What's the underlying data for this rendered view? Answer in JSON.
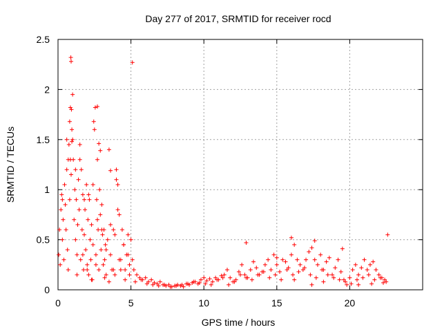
{
  "chart_data": {
    "type": "scatter",
    "title": "Day 277 of 2017, SRMTID for receiver rocd",
    "xlabel": "GPS time / hours",
    "ylabel": "SRMTID / TECUs",
    "xlim": [
      0,
      25
    ],
    "ylim": [
      0,
      2.5
    ],
    "xticks": [
      0,
      5,
      10,
      15,
      20
    ],
    "yticks": [
      0,
      0.5,
      1,
      1.5,
      2,
      2.5
    ],
    "xtick_labels": [
      "0",
      "5",
      "10",
      "15",
      "20"
    ],
    "ytick_labels": [
      "0",
      "0.5",
      "1",
      "1.5",
      "2",
      "2.5"
    ],
    "grid": true,
    "marker": "+",
    "series": [
      {
        "name": "SRMTID",
        "color": "#ff0000",
        "x": [
          0.05,
          0.1,
          0.15,
          0.2,
          0.25,
          0.3,
          0.35,
          0.4,
          0.45,
          0.5,
          0.55,
          0.6,
          0.65,
          0.7,
          0.75,
          0.8,
          0.85,
          0.88,
          0.9,
          0.92,
          0.95,
          1.0,
          1.05,
          1.1,
          1.15,
          1.2,
          1.25,
          1.3,
          1.35,
          1.4,
          1.45,
          1.5,
          1.55,
          1.6,
          1.65,
          1.7,
          1.75,
          1.8,
          1.85,
          1.9,
          1.95,
          2.0,
          2.05,
          2.1,
          2.15,
          2.2,
          2.25,
          2.3,
          2.35,
          2.4,
          2.45,
          2.5,
          2.55,
          2.6,
          2.65,
          2.7,
          2.75,
          2.8,
          2.85,
          2.9,
          2.95,
          3.0,
          3.05,
          3.1,
          3.15,
          3.2,
          3.25,
          3.3,
          3.4,
          3.5,
          3.6,
          3.7,
          3.8,
          3.9,
          4.0,
          4.1,
          4.2,
          4.3,
          4.4,
          4.5,
          4.6,
          4.7,
          4.8,
          4.9,
          5.0,
          5.1,
          5.2,
          5.4,
          5.6,
          5.8,
          6.0,
          6.2,
          6.4,
          6.6,
          6.8,
          7.0,
          7.2,
          7.4,
          7.6,
          7.8,
          8.0,
          8.2,
          8.4,
          8.6,
          8.8,
          9.0,
          9.2,
          9.4,
          9.6,
          9.8,
          10.0,
          10.2,
          10.4,
          10.6,
          10.8,
          11.0,
          11.2,
          11.4,
          11.6,
          11.8,
          12.0,
          12.2,
          12.4,
          12.6,
          12.8,
          13.0,
          13.2,
          13.4,
          13.6,
          13.8,
          14.0,
          14.2,
          14.4,
          14.6,
          14.8,
          15.0,
          15.2,
          15.4,
          15.6,
          15.8,
          16.0,
          16.2,
          16.4,
          16.6,
          16.8,
          17.0,
          17.2,
          17.4,
          17.6,
          17.8,
          18.0,
          18.2,
          18.4,
          18.6,
          18.8,
          19.0,
          19.2,
          19.4,
          19.6,
          19.8,
          20.0,
          20.2,
          20.4,
          20.6,
          20.8,
          21.0,
          21.2,
          21.4,
          21.6,
          21.8,
          22.0,
          22.2,
          22.4,
          22.6,
          0.3,
          0.6,
          0.9,
          1.2,
          1.5,
          1.8,
          2.1,
          2.4,
          2.7,
          3.0,
          3.3,
          3.6,
          3.9,
          4.2,
          4.5,
          4.8,
          5.1,
          0.85,
          0.95,
          1.0,
          0.8,
          2.7,
          2.8,
          2.9,
          3.6,
          4.0,
          4.1,
          4.3,
          0.7,
          1.3,
          1.7,
          2.0,
          2.3,
          2.6,
          3.2,
          3.5,
          3.8,
          4.6,
          4.9,
          5.3,
          5.7,
          6.1,
          6.5,
          6.9,
          7.3,
          7.7,
          8.1,
          8.5,
          8.9,
          9.3,
          9.7,
          10.1,
          10.5,
          10.9,
          11.3,
          11.7,
          12.1,
          12.5,
          12.9,
          13.3,
          13.7,
          14.1,
          14.5,
          14.9,
          15.3,
          15.7,
          16.1,
          16.5,
          16.9,
          17.3,
          17.7,
          18.1,
          18.5,
          18.9,
          19.3,
          19.7,
          20.1,
          20.5,
          20.9,
          21.3,
          21.7,
          22.1,
          22.5,
          12.9,
          16.0,
          17.6,
          19.5,
          15.0,
          16.2,
          17.4,
          18.2,
          20.6,
          21.5,
          22.3
        ],
        "y": [
          0.35,
          0.6,
          0.25,
          0.8,
          0.95,
          0.5,
          0.7,
          0.3,
          1.05,
          0.85,
          0.6,
          1.2,
          0.4,
          1.3,
          1.45,
          0.9,
          1.3,
          2.32,
          2.28,
          1.8,
          1.6,
          1.95,
          1.3,
          0.7,
          1.0,
          0.5,
          0.9,
          0.35,
          0.65,
          1.1,
          0.8,
          1.45,
          0.3,
          1.2,
          0.6,
          0.95,
          0.2,
          0.55,
          0.8,
          0.4,
          1.05,
          0.25,
          0.7,
          0.15,
          0.9,
          0.5,
          0.3,
          0.65,
          0.1,
          0.45,
          1.68,
          1.6,
          1.82,
          0.35,
          0.9,
          1.3,
          0.6,
          0.2,
          1.0,
          0.75,
          0.4,
          0.85,
          0.55,
          0.25,
          0.6,
          0.3,
          0.45,
          0.15,
          0.5,
          1.4,
          0.35,
          0.2,
          0.6,
          0.15,
          1.2,
          1.05,
          0.75,
          0.3,
          0.6,
          0.45,
          0.2,
          0.35,
          0.55,
          0.25,
          0.5,
          0.3,
          0.2,
          0.15,
          0.12,
          0.1,
          0.12,
          0.08,
          0.1,
          0.07,
          0.06,
          0.08,
          0.05,
          0.04,
          0.05,
          0.03,
          0.04,
          0.05,
          0.04,
          0.03,
          0.06,
          0.05,
          0.07,
          0.08,
          0.06,
          0.1,
          0.12,
          0.09,
          0.11,
          0.08,
          0.12,
          0.1,
          0.14,
          0.15,
          0.2,
          0.12,
          0.08,
          0.1,
          0.18,
          0.25,
          0.15,
          0.12,
          0.2,
          0.28,
          0.22,
          0.15,
          0.18,
          0.25,
          0.3,
          0.2,
          0.35,
          0.25,
          0.18,
          0.3,
          0.28,
          0.22,
          0.35,
          0.45,
          0.3,
          0.25,
          0.2,
          0.3,
          0.38,
          0.42,
          0.3,
          0.25,
          0.35,
          0.2,
          0.28,
          0.32,
          0.15,
          0.22,
          0.3,
          0.18,
          0.1,
          0.05,
          0.12,
          0.2,
          0.25,
          0.15,
          0.22,
          0.3,
          0.2,
          0.25,
          0.28,
          0.2,
          0.15,
          0.12,
          0.1,
          0.55,
          0.9,
          1.5,
          1.15,
          1.2,
          1.3,
          0.9,
          0.95,
          1.05,
          0.7,
          0.6,
          0.4,
          0.65,
          0.55,
          0.3,
          0.45,
          0.35,
          2.27,
          1.82,
          1.48,
          1.5,
          1.68,
          1.83,
          1.46,
          1.39,
          1.19,
          1.1,
          0.8,
          0.2,
          0.2,
          0.15,
          0.35,
          0.2,
          0.1,
          0.25,
          0.12,
          0.08,
          0.2,
          0.1,
          0.15,
          0.08,
          0.1,
          0.06,
          0.05,
          0.04,
          0.05,
          0.03,
          0.04,
          0.05,
          0.06,
          0.08,
          0.07,
          0.06,
          0.05,
          0.1,
          0.12,
          0.05,
          0.08,
          0.15,
          0.12,
          0.1,
          0.15,
          0.18,
          0.12,
          0.15,
          0.1,
          0.2,
          0.15,
          0.18,
          0.22,
          0.15,
          0.12,
          0.2,
          0.15,
          0.12,
          0.1,
          0.08,
          0.06,
          0.1,
          0.12,
          0.15,
          0.1,
          0.12,
          0.08,
          0.47,
          0.52,
          0.49,
          0.41,
          0.32,
          0.1,
          0.05,
          0.08,
          0.05,
          0.06,
          0.07
        ]
      }
    ]
  }
}
